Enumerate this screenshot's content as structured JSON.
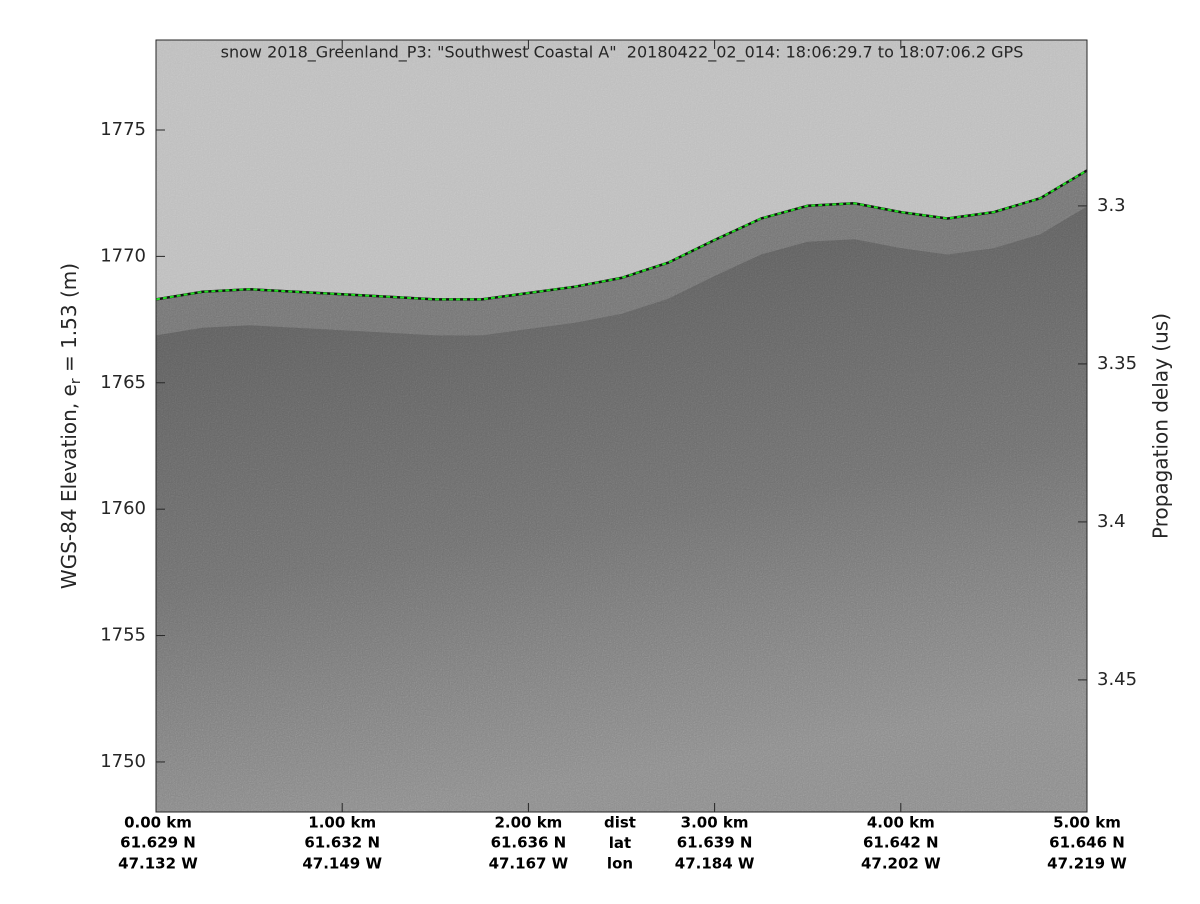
{
  "chart_data": {
    "type": "echogram",
    "title": "snow 2018_Greenland_P3: \"Southwest Coastal A\"  20180422_02_014: 18:06:29.7 to 18:07:06.2 GPS",
    "ylabel": {
      "main": "WGS-84 Elevation, e",
      "sub": "r",
      "rest": " = 1.53 (m)"
    },
    "y2label": "Propagation delay (us)",
    "xlim": [
      0,
      5
    ],
    "xticks": [
      {
        "value": 0,
        "label": "0.00 km"
      },
      {
        "value": 1,
        "label": "1.00 km"
      },
      {
        "value": 2,
        "label": "2.00 km"
      },
      {
        "value": 3,
        "label": "3.00 km"
      },
      {
        "value": 4,
        "label": "4.00 km"
      },
      {
        "value": 5,
        "label": "5.00 km"
      }
    ],
    "lat_labels": [
      "61.629 N",
      "61.632 N",
      "61.636 N",
      "61.639 N",
      "61.642 N",
      "61.646 N"
    ],
    "lon_labels": [
      "47.132 W",
      "47.149 W",
      "47.167 W",
      "47.184 W",
      "47.202 W",
      "47.219 W"
    ],
    "row_labels": [
      "dist",
      "lat",
      "lon"
    ],
    "ylim": [
      1748.02,
      1778.56
    ],
    "yticks": [
      1750,
      1755,
      1760,
      1765,
      1770,
      1775
    ],
    "y2lim": [
      3.4918,
      3.2475
    ],
    "y2ticks": [
      3.3,
      3.35,
      3.4,
      3.45
    ],
    "grid": false,
    "series": [
      {
        "color": "#22dd22",
        "x": [
          0,
          0.25,
          0.5,
          0.75,
          1,
          1.25,
          1.5,
          1.75,
          2,
          2.25,
          2.5,
          2.75,
          3,
          3.25,
          3.5,
          3.75,
          4,
          4.25,
          4.5,
          4.75,
          5
        ],
        "values": [
          1768.3,
          1768.6,
          1768.7,
          1768.6,
          1768.5,
          1768.4,
          1768.3,
          1768.3,
          1768.55,
          1768.8,
          1769.15,
          1769.75,
          1770.65,
          1771.5,
          1772.0,
          1772.1,
          1771.75,
          1771.5,
          1771.75,
          1772.3,
          1773.4
        ]
      }
    ]
  }
}
